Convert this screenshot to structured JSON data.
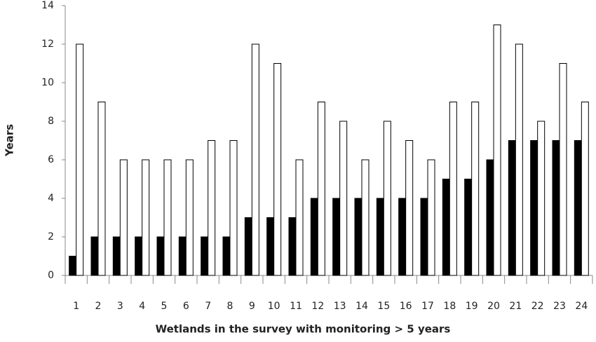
{
  "chart_data": {
    "type": "bar",
    "x_label": "Wetlands in the survey with monitoring > 5 years",
    "y_label": "Years",
    "categories": [
      "1",
      "2",
      "3",
      "4",
      "5",
      "6",
      "7",
      "8",
      "9",
      "10",
      "11",
      "12",
      "13",
      "14",
      "15",
      "16",
      "17",
      "18",
      "19",
      "20",
      "21",
      "22",
      "23",
      "24"
    ],
    "series": [
      {
        "color": "#000000",
        "values": [
          1,
          2,
          2,
          2,
          2,
          2,
          2,
          2,
          3,
          3,
          3,
          4,
          4,
          4,
          4,
          4,
          4,
          5,
          5,
          6,
          7,
          7,
          7,
          7
        ]
      },
      {
        "color": "#ffffff",
        "values": [
          12,
          9,
          6,
          6,
          6,
          6,
          7,
          7,
          12,
          11,
          6,
          9,
          8,
          6,
          8,
          7,
          6,
          9,
          9,
          13,
          12,
          8,
          11,
          9
        ]
      }
    ],
    "ylim": [
      0,
      14
    ],
    "yticks": [
      0,
      2,
      4,
      6,
      8,
      10,
      12,
      14
    ],
    "grid": false
  }
}
